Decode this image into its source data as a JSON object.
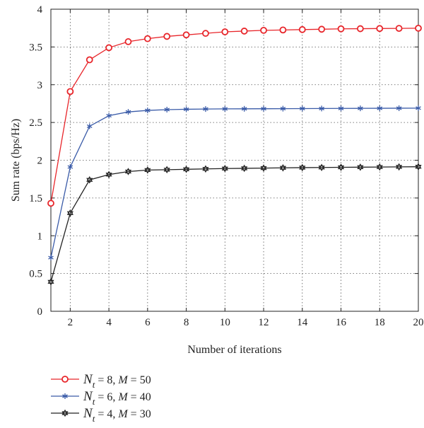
{
  "chart_data": {
    "type": "line",
    "title": "",
    "xlabel": "Number of iterations",
    "ylabel": "Sum rate (bps/Hz)",
    "xlim": [
      1,
      20
    ],
    "ylim": [
      0,
      4
    ],
    "x_ticks": [
      2,
      4,
      6,
      8,
      10,
      12,
      14,
      16,
      18,
      20
    ],
    "y_ticks": [
      0,
      0.5,
      1,
      1.5,
      2,
      2.5,
      3,
      3.5,
      4
    ],
    "x_tick_labels": [
      "2",
      "4",
      "6",
      "8",
      "10",
      "12",
      "14",
      "16",
      "18",
      "20"
    ],
    "y_tick_labels": [
      "0",
      "0.5",
      "1",
      "1.5",
      "2",
      "2.5",
      "3",
      "3.5",
      "4"
    ],
    "grid": true,
    "legend_position": "below",
    "x": [
      1,
      2,
      3,
      4,
      5,
      6,
      7,
      8,
      9,
      10,
      11,
      12,
      13,
      14,
      15,
      16,
      17,
      18,
      19,
      20
    ],
    "series": [
      {
        "legend": {
          "a": "N",
          "sub": "t",
          "b": " = 8, ",
          "c": "M",
          "d": " = 50"
        },
        "color": "#e8262b",
        "marker": "circle",
        "values": [
          1.43,
          2.91,
          3.33,
          3.49,
          3.57,
          3.61,
          3.64,
          3.66,
          3.68,
          3.7,
          3.71,
          3.72,
          3.725,
          3.73,
          3.735,
          3.74,
          3.742,
          3.744,
          3.746,
          3.748
        ]
      },
      {
        "legend": {
          "a": "N",
          "sub": "t",
          "b": " = 6, ",
          "c": "M",
          "d": " = 40"
        },
        "color": "#3a5ba8",
        "marker": "asterisk",
        "values": [
          0.71,
          1.91,
          2.45,
          2.59,
          2.64,
          2.66,
          2.67,
          2.675,
          2.678,
          2.68,
          2.681,
          2.682,
          2.683,
          2.684,
          2.685,
          2.686,
          2.687,
          2.688,
          2.689,
          2.69
        ]
      },
      {
        "legend": {
          "a": "N",
          "sub": "t",
          "b": " = 4, ",
          "c": "M",
          "d": " = 30"
        },
        "color": "#222222",
        "marker": "hexagram",
        "values": [
          0.39,
          1.3,
          1.74,
          1.81,
          1.85,
          1.87,
          1.875,
          1.88,
          1.885,
          1.89,
          1.893,
          1.896,
          1.899,
          1.902,
          1.904,
          1.906,
          1.908,
          1.91,
          1.912,
          1.914
        ]
      }
    ]
  }
}
